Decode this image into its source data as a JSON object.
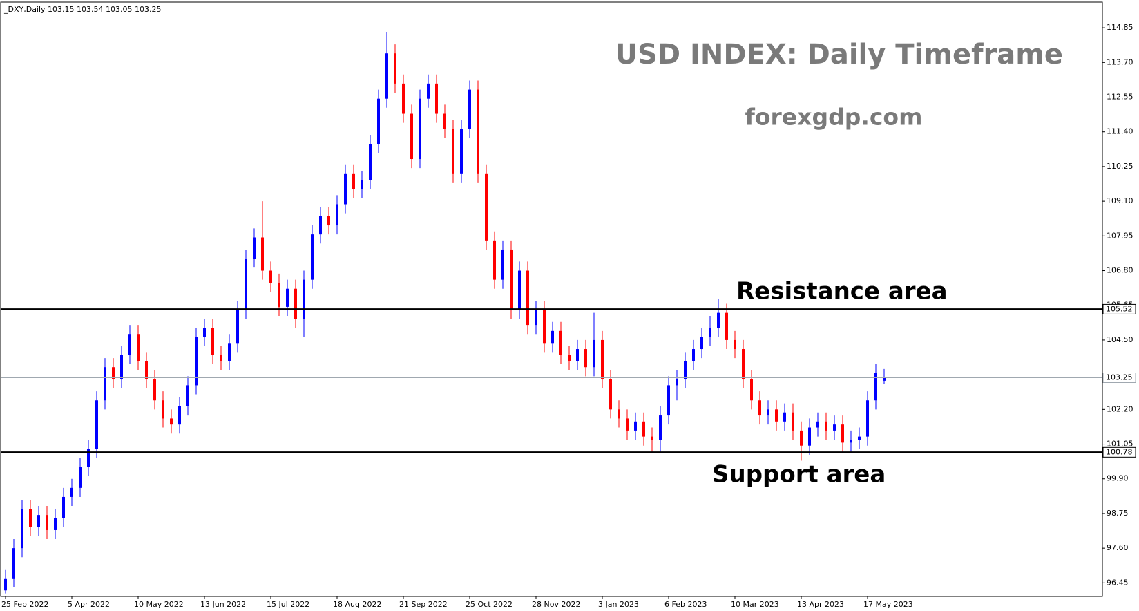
{
  "chart_data": {
    "type": "candlestick",
    "title": "USD INDEX: Daily Timeframe",
    "watermark": "forexgdp.com",
    "symbol_line": "_DXY,Daily  103.15 103.54 103.05 103.25",
    "annotations": [
      "Resistance area",
      "Support area"
    ],
    "categories": [
      "25 Feb 2022",
      null,
      null,
      null,
      null,
      null,
      null,
      null,
      "5 Apr 2022",
      null,
      null,
      null,
      null,
      null,
      null,
      null,
      "10 May 2022",
      null,
      null,
      null,
      null,
      null,
      null,
      null,
      "13 Jun 2022",
      null,
      null,
      null,
      null,
      null,
      null,
      null,
      "15 Jul 2022",
      null,
      null,
      null,
      null,
      null,
      null,
      null,
      "18 Aug 2022",
      null,
      null,
      null,
      null,
      null,
      null,
      null,
      "21 Sep 2022",
      null,
      null,
      null,
      null,
      null,
      null,
      null,
      "25 Oct 2022",
      null,
      null,
      null,
      null,
      null,
      null,
      null,
      "28 Nov 2022",
      null,
      null,
      null,
      null,
      null,
      null,
      null,
      "3 Jan 2023",
      null,
      null,
      null,
      null,
      null,
      null,
      null,
      "6 Feb 2023",
      null,
      null,
      null,
      null,
      null,
      null,
      null,
      "10 Mar 2023",
      null,
      null,
      null,
      null,
      null,
      null,
      null,
      "13 Apr 2023",
      null,
      null,
      null,
      null,
      null,
      null,
      null,
      "17 May 2023",
      null,
      null
    ],
    "series": [
      {
        "up_color": "#0000ff",
        "down_color": "#ff0000",
        "open": [
          96.2,
          96.6,
          97.6,
          98.9,
          98.3,
          98.7,
          98.2,
          98.6,
          99.3,
          99.6,
          100.3,
          100.9,
          102.5,
          103.6,
          103.2,
          104.0,
          104.7,
          103.8,
          103.2,
          102.5,
          101.9,
          101.7,
          102.3,
          103.0,
          104.6,
          104.9,
          104.0,
          103.8,
          104.4,
          105.5,
          107.2,
          107.9,
          106.8,
          106.4,
          105.6,
          106.2,
          105.2,
          106.5,
          108.0,
          108.6,
          108.3,
          109.0,
          110.0,
          109.5,
          109.8,
          111.0,
          112.5,
          114.0,
          113.0,
          112.0,
          110.5,
          112.5,
          113.0,
          112.0,
          111.5,
          110.0,
          111.5,
          112.8,
          110.0,
          107.8,
          106.5,
          107.5,
          105.5,
          106.8,
          105.0,
          105.5,
          104.4,
          104.8,
          104.0,
          103.8,
          104.2,
          103.6,
          104.5,
          103.2,
          102.2,
          101.9,
          101.5,
          101.8,
          101.3,
          101.2,
          102.0,
          103.0,
          103.2,
          103.8,
          104.2,
          104.6,
          104.9,
          105.4,
          104.5,
          104.2,
          103.2,
          102.5,
          102.0,
          102.2,
          101.8,
          102.1,
          101.5,
          101.0,
          101.6,
          101.8,
          101.5,
          101.7,
          101.1,
          101.2,
          101.3,
          102.5,
          103.15
        ],
        "high": [
          96.9,
          97.9,
          99.2,
          99.2,
          99.0,
          99.0,
          98.9,
          99.6,
          99.9,
          100.6,
          101.2,
          102.8,
          103.9,
          103.9,
          104.3,
          105.0,
          105.0,
          104.1,
          103.5,
          102.8,
          102.2,
          102.6,
          103.3,
          104.9,
          105.2,
          105.2,
          104.3,
          104.7,
          105.8,
          107.5,
          108.2,
          109.1,
          107.1,
          106.7,
          106.5,
          106.5,
          106.8,
          108.3,
          108.9,
          108.9,
          109.3,
          110.3,
          110.3,
          110.1,
          111.3,
          112.8,
          114.7,
          114.3,
          113.3,
          112.3,
          112.8,
          113.3,
          113.3,
          112.3,
          111.8,
          111.8,
          113.1,
          113.1,
          110.3,
          108.1,
          107.8,
          107.8,
          107.1,
          107.1,
          105.8,
          105.8,
          105.1,
          105.1,
          104.3,
          104.5,
          104.5,
          105.4,
          104.8,
          103.5,
          102.5,
          102.2,
          102.1,
          102.1,
          101.6,
          102.3,
          103.3,
          103.5,
          104.1,
          104.5,
          104.9,
          105.3,
          105.85,
          105.7,
          104.8,
          104.5,
          103.5,
          102.8,
          102.5,
          102.5,
          102.4,
          102.4,
          101.8,
          101.9,
          102.1,
          102.1,
          102.0,
          102.0,
          101.5,
          101.6,
          102.8,
          103.7,
          103.54
        ],
        "low": [
          96.1,
          96.3,
          97.3,
          98.0,
          98.0,
          97.9,
          97.9,
          98.3,
          99.0,
          99.3,
          100.0,
          100.6,
          102.2,
          102.9,
          102.9,
          103.7,
          103.5,
          102.9,
          102.2,
          101.6,
          101.4,
          101.4,
          102.0,
          102.7,
          104.3,
          103.7,
          103.5,
          103.5,
          104.1,
          105.2,
          106.9,
          106.5,
          106.1,
          105.3,
          105.3,
          104.9,
          104.6,
          106.2,
          107.7,
          108.0,
          108.0,
          108.7,
          109.2,
          109.2,
          109.5,
          110.7,
          112.2,
          112.7,
          111.7,
          110.2,
          110.2,
          112.2,
          111.7,
          111.2,
          109.7,
          109.7,
          111.2,
          109.7,
          107.5,
          106.2,
          106.2,
          105.2,
          105.2,
          104.7,
          104.7,
          104.1,
          104.1,
          103.7,
          103.5,
          103.5,
          103.3,
          103.3,
          102.9,
          101.9,
          101.6,
          101.2,
          101.2,
          101.0,
          100.8,
          100.8,
          101.7,
          102.5,
          102.9,
          103.5,
          103.9,
          104.3,
          104.6,
          104.2,
          103.9,
          102.9,
          102.2,
          101.7,
          101.7,
          101.5,
          101.5,
          101.2,
          100.5,
          100.7,
          101.3,
          101.2,
          101.2,
          100.8,
          100.8,
          100.9,
          101.0,
          102.2,
          103.05
        ],
        "close": [
          96.6,
          97.6,
          98.9,
          98.3,
          98.7,
          98.2,
          98.6,
          99.3,
          99.6,
          100.3,
          100.9,
          102.5,
          103.6,
          103.2,
          104.0,
          104.7,
          103.8,
          103.2,
          102.5,
          101.9,
          101.7,
          102.3,
          103.0,
          104.6,
          104.9,
          104.0,
          103.8,
          104.4,
          105.5,
          107.2,
          107.9,
          106.8,
          106.4,
          105.6,
          106.2,
          105.2,
          106.5,
          108.0,
          108.6,
          108.3,
          109.0,
          110.0,
          109.5,
          109.8,
          111.0,
          112.5,
          114.0,
          113.0,
          112.0,
          110.5,
          112.5,
          113.0,
          112.0,
          111.5,
          110.0,
          111.5,
          112.8,
          110.0,
          107.8,
          106.5,
          107.5,
          105.5,
          106.8,
          105.0,
          105.5,
          104.4,
          104.8,
          104.0,
          103.8,
          104.2,
          103.6,
          104.5,
          103.2,
          102.2,
          101.9,
          101.5,
          101.8,
          101.3,
          101.2,
          102.0,
          103.0,
          103.2,
          103.8,
          104.2,
          104.6,
          104.9,
          105.4,
          104.5,
          104.2,
          103.2,
          102.5,
          102.0,
          102.2,
          101.8,
          102.1,
          101.5,
          101.0,
          101.6,
          101.8,
          101.5,
          101.7,
          101.1,
          101.2,
          101.3,
          102.5,
          103.4,
          103.25
        ]
      }
    ],
    "resistance": 105.52,
    "support": 100.78,
    "last_price": 103.25,
    "level_color": "#000000",
    "last_price_color": "#a0a8b0",
    "ylim": [
      96.0,
      115.7
    ],
    "yticks": [
      114.85,
      {
        "value": 113.7,
        "label": "113.70"
      },
      112.55,
      {
        "value": 111.4,
        "label": "111.40"
      },
      110.25,
      {
        "value": 109.1,
        "label": "109.10"
      },
      107.95,
      {
        "value": 106.8,
        "label": "106.80"
      },
      105.65,
      {
        "value": 104.5,
        "label": "104.50"
      },
      {
        "value": 102.2,
        "label": "102.20"
      },
      101.05,
      {
        "value": 99.9,
        "label": "99.90"
      },
      98.75,
      {
        "value": 97.6,
        "label": "97.60"
      },
      96.45
    ],
    "grid": false
  }
}
